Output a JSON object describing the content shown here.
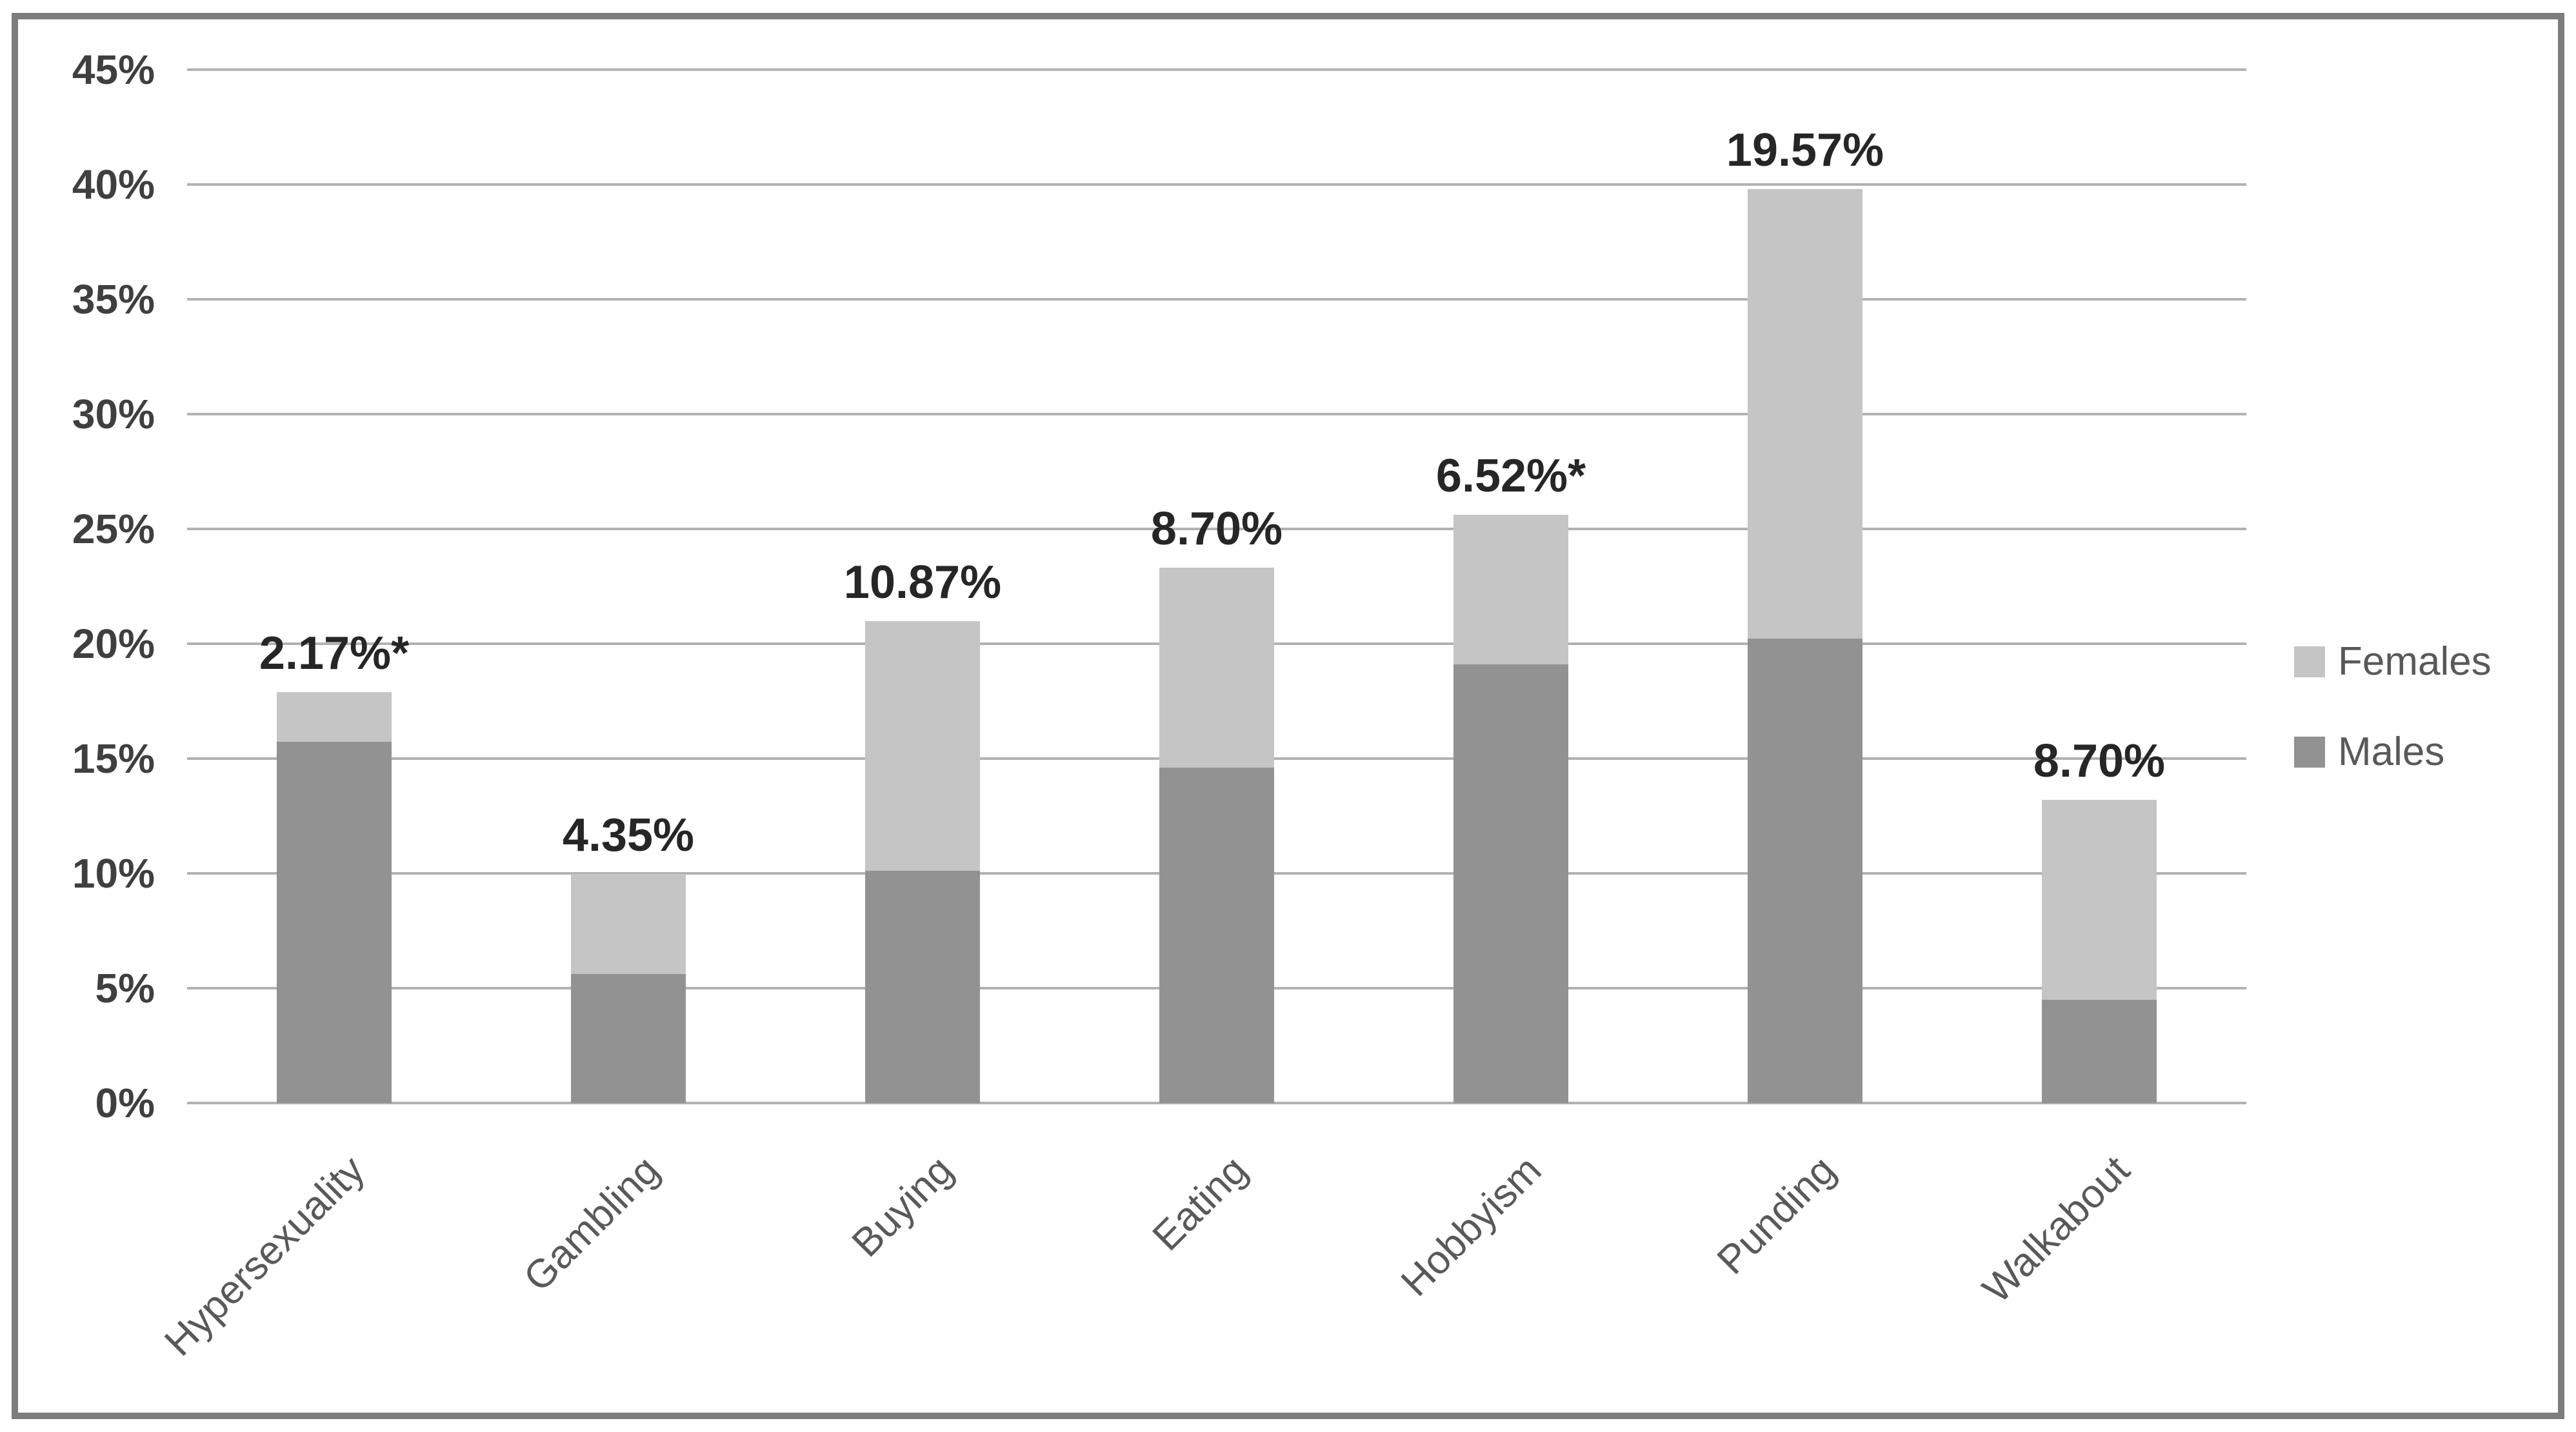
{
  "chart_data": {
    "type": "bar",
    "subtype": "stacked-column",
    "title": "",
    "categories": [
      "Hypersexuality",
      "Gambling",
      "Buying",
      "Eating",
      "Hobbyism",
      "Punding",
      "Walkabout"
    ],
    "series": [
      {
        "name": "Males",
        "color": "#929292",
        "values": [
          15.73,
          5.62,
          10.11,
          14.61,
          19.1,
          20.22,
          4.49
        ]
      },
      {
        "name": "Females",
        "color": "#c5c5c5",
        "values": [
          2.17,
          4.35,
          10.87,
          8.7,
          6.52,
          19.57,
          8.7
        ]
      }
    ],
    "bar_value_labels": [
      "2.17%*",
      "4.35%",
      "10.87%",
      "8.70%",
      "6.52%*",
      "19.57%",
      "8.70%"
    ],
    "ylabel": "",
    "xlabel": "",
    "ylim": [
      0,
      45
    ],
    "y_tick_step": 5,
    "y_ticks": [
      "45%",
      "40%",
      "35%",
      "30%",
      "25%",
      "20%",
      "15%",
      "10%",
      "5%",
      "0%"
    ],
    "grid": "horizontal",
    "gridline_color": "#b2b2b2",
    "legend_position": "right",
    "legend": [
      {
        "label": "Females",
        "color": "#c5c5c5"
      },
      {
        "label": "Males",
        "color": "#929292"
      }
    ],
    "frame_border_color": "#7d7d7d",
    "value_label_color": "#262626",
    "tick_label_color": "#3f3f3f",
    "category_label_color": "#595959"
  }
}
